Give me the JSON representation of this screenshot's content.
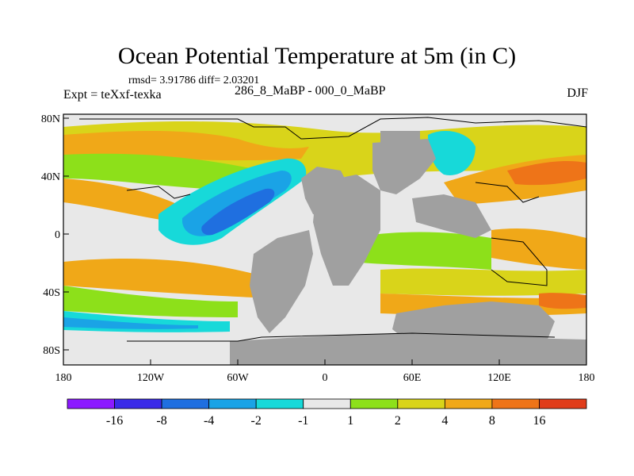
{
  "title": "Ocean Potential Temperature at 5m (in C)",
  "stats": "rmsd= 3.91786 diff= 2.03201",
  "expt": "Expt = teXxf-texka",
  "subtitle": "286_8_MaBP - 000_0_MaBP",
  "season": "DJF",
  "axes": {
    "x_ticks": [
      "180",
      "120W",
      "60W",
      "0",
      "60E",
      "120E",
      "180"
    ],
    "y_ticks": [
      "80N",
      "40N",
      "0",
      "40S",
      "80S"
    ]
  },
  "colorbar": {
    "labels": [
      "-16",
      "-8",
      "-4",
      "-2",
      "-1",
      "1",
      "2",
      "4",
      "8",
      "16"
    ],
    "colors": [
      "#8c1aff",
      "#3a2be8",
      "#1f6fe0",
      "#1aa3e6",
      "#17d9d9",
      "#e8e8e8",
      "#8de01a",
      "#d9d41a",
      "#f0a818",
      "#ee7418",
      "#e03c1a"
    ]
  },
  "colors": {
    "land": "#a0a0a0",
    "neutral": "#e8e8e8"
  }
}
